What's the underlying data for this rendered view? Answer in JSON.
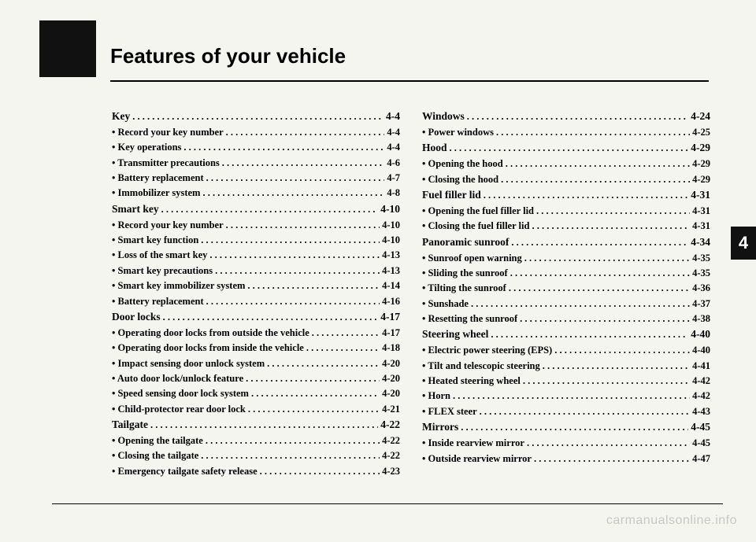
{
  "title": "Features of your vehicle",
  "chapter": "4",
  "watermark": "carmanualsonline.info",
  "columns": [
    [
      {
        "type": "section",
        "label": "Key",
        "page": "4-4"
      },
      {
        "type": "sub",
        "label": "Record your key number",
        "page": "4-4"
      },
      {
        "type": "sub",
        "label": "Key operations",
        "page": "4-4"
      },
      {
        "type": "sub",
        "label": "Transmitter precautions",
        "page": "4-6"
      },
      {
        "type": "sub",
        "label": "Battery replacement",
        "page": "4-7"
      },
      {
        "type": "sub",
        "label": "Immobilizer system",
        "page": "4-8"
      },
      {
        "type": "section",
        "label": "Smart key",
        "page": "4-10"
      },
      {
        "type": "sub",
        "label": "Record your key number",
        "page": "4-10"
      },
      {
        "type": "sub",
        "label": "Smart key function",
        "page": "4-10"
      },
      {
        "type": "sub",
        "label": "Loss of the smart key",
        "page": "4-13"
      },
      {
        "type": "sub",
        "label": "Smart key precautions",
        "page": "4-13"
      },
      {
        "type": "sub",
        "label": "Smart key immobilizer system",
        "page": "4-14"
      },
      {
        "type": "sub",
        "label": "Battery replacement",
        "page": "4-16"
      },
      {
        "type": "section",
        "label": "Door locks",
        "page": "4-17"
      },
      {
        "type": "sub",
        "label": "Operating door locks from outside the vehicle",
        "page": "4-17"
      },
      {
        "type": "sub",
        "label": "Operating door locks from inside the vehicle",
        "page": "4-18"
      },
      {
        "type": "sub",
        "label": "Impact sensing door unlock system",
        "page": "4-20"
      },
      {
        "type": "sub",
        "label": "Auto door lock/unlock feature",
        "page": "4-20"
      },
      {
        "type": "sub",
        "label": "Speed sensing door lock system",
        "page": "4-20"
      },
      {
        "type": "sub",
        "label": "Child-protector rear door lock",
        "page": "4-21"
      },
      {
        "type": "section",
        "label": "Tailgate",
        "page": "4-22"
      },
      {
        "type": "sub",
        "label": "Opening the tailgate",
        "page": "4-22"
      },
      {
        "type": "sub",
        "label": "Closing the tailgate",
        "page": "4-22"
      },
      {
        "type": "sub",
        "label": "Emergency tailgate safety release",
        "page": "4-23"
      }
    ],
    [
      {
        "type": "section",
        "label": "Windows",
        "page": "4-24"
      },
      {
        "type": "sub",
        "label": "Power windows",
        "page": "4-25"
      },
      {
        "type": "section",
        "label": "Hood",
        "page": "4-29"
      },
      {
        "type": "sub",
        "label": "Opening the hood",
        "page": "4-29"
      },
      {
        "type": "sub",
        "label": "Closing the hood",
        "page": "4-29"
      },
      {
        "type": "section",
        "label": "Fuel filler lid",
        "page": "4-31"
      },
      {
        "type": "sub",
        "label": "Opening the fuel filler lid",
        "page": "4-31"
      },
      {
        "type": "sub",
        "label": "Closing the fuel filler lid",
        "page": "4-31"
      },
      {
        "type": "section",
        "label": "Panoramic sunroof",
        "page": "4-34"
      },
      {
        "type": "sub",
        "label": "Sunroof open warning",
        "page": "4-35"
      },
      {
        "type": "sub",
        "label": "Sliding the sunroof",
        "page": "4-35"
      },
      {
        "type": "sub",
        "label": "Tilting the sunroof",
        "page": "4-36"
      },
      {
        "type": "sub",
        "label": "Sunshade",
        "page": "4-37"
      },
      {
        "type": "sub",
        "label": "Resetting the sunroof",
        "page": "4-38"
      },
      {
        "type": "section",
        "label": "Steering wheel",
        "page": "4-40"
      },
      {
        "type": "sub",
        "label": "Electric power steering (EPS)",
        "page": "4-40"
      },
      {
        "type": "sub",
        "label": "Tilt and telescopic steering",
        "page": "4-41"
      },
      {
        "type": "sub",
        "label": "Heated steering wheel",
        "page": "4-42"
      },
      {
        "type": "sub",
        "label": "Horn",
        "page": "4-42"
      },
      {
        "type": "sub",
        "label": "FLEX steer",
        "page": "4-43"
      },
      {
        "type": "section",
        "label": "Mirrors",
        "page": "4-45"
      },
      {
        "type": "sub",
        "label": "Inside rearview mirror",
        "page": "4-45"
      },
      {
        "type": "sub",
        "label": "Outside rearview mirror",
        "page": "4-47"
      }
    ]
  ]
}
